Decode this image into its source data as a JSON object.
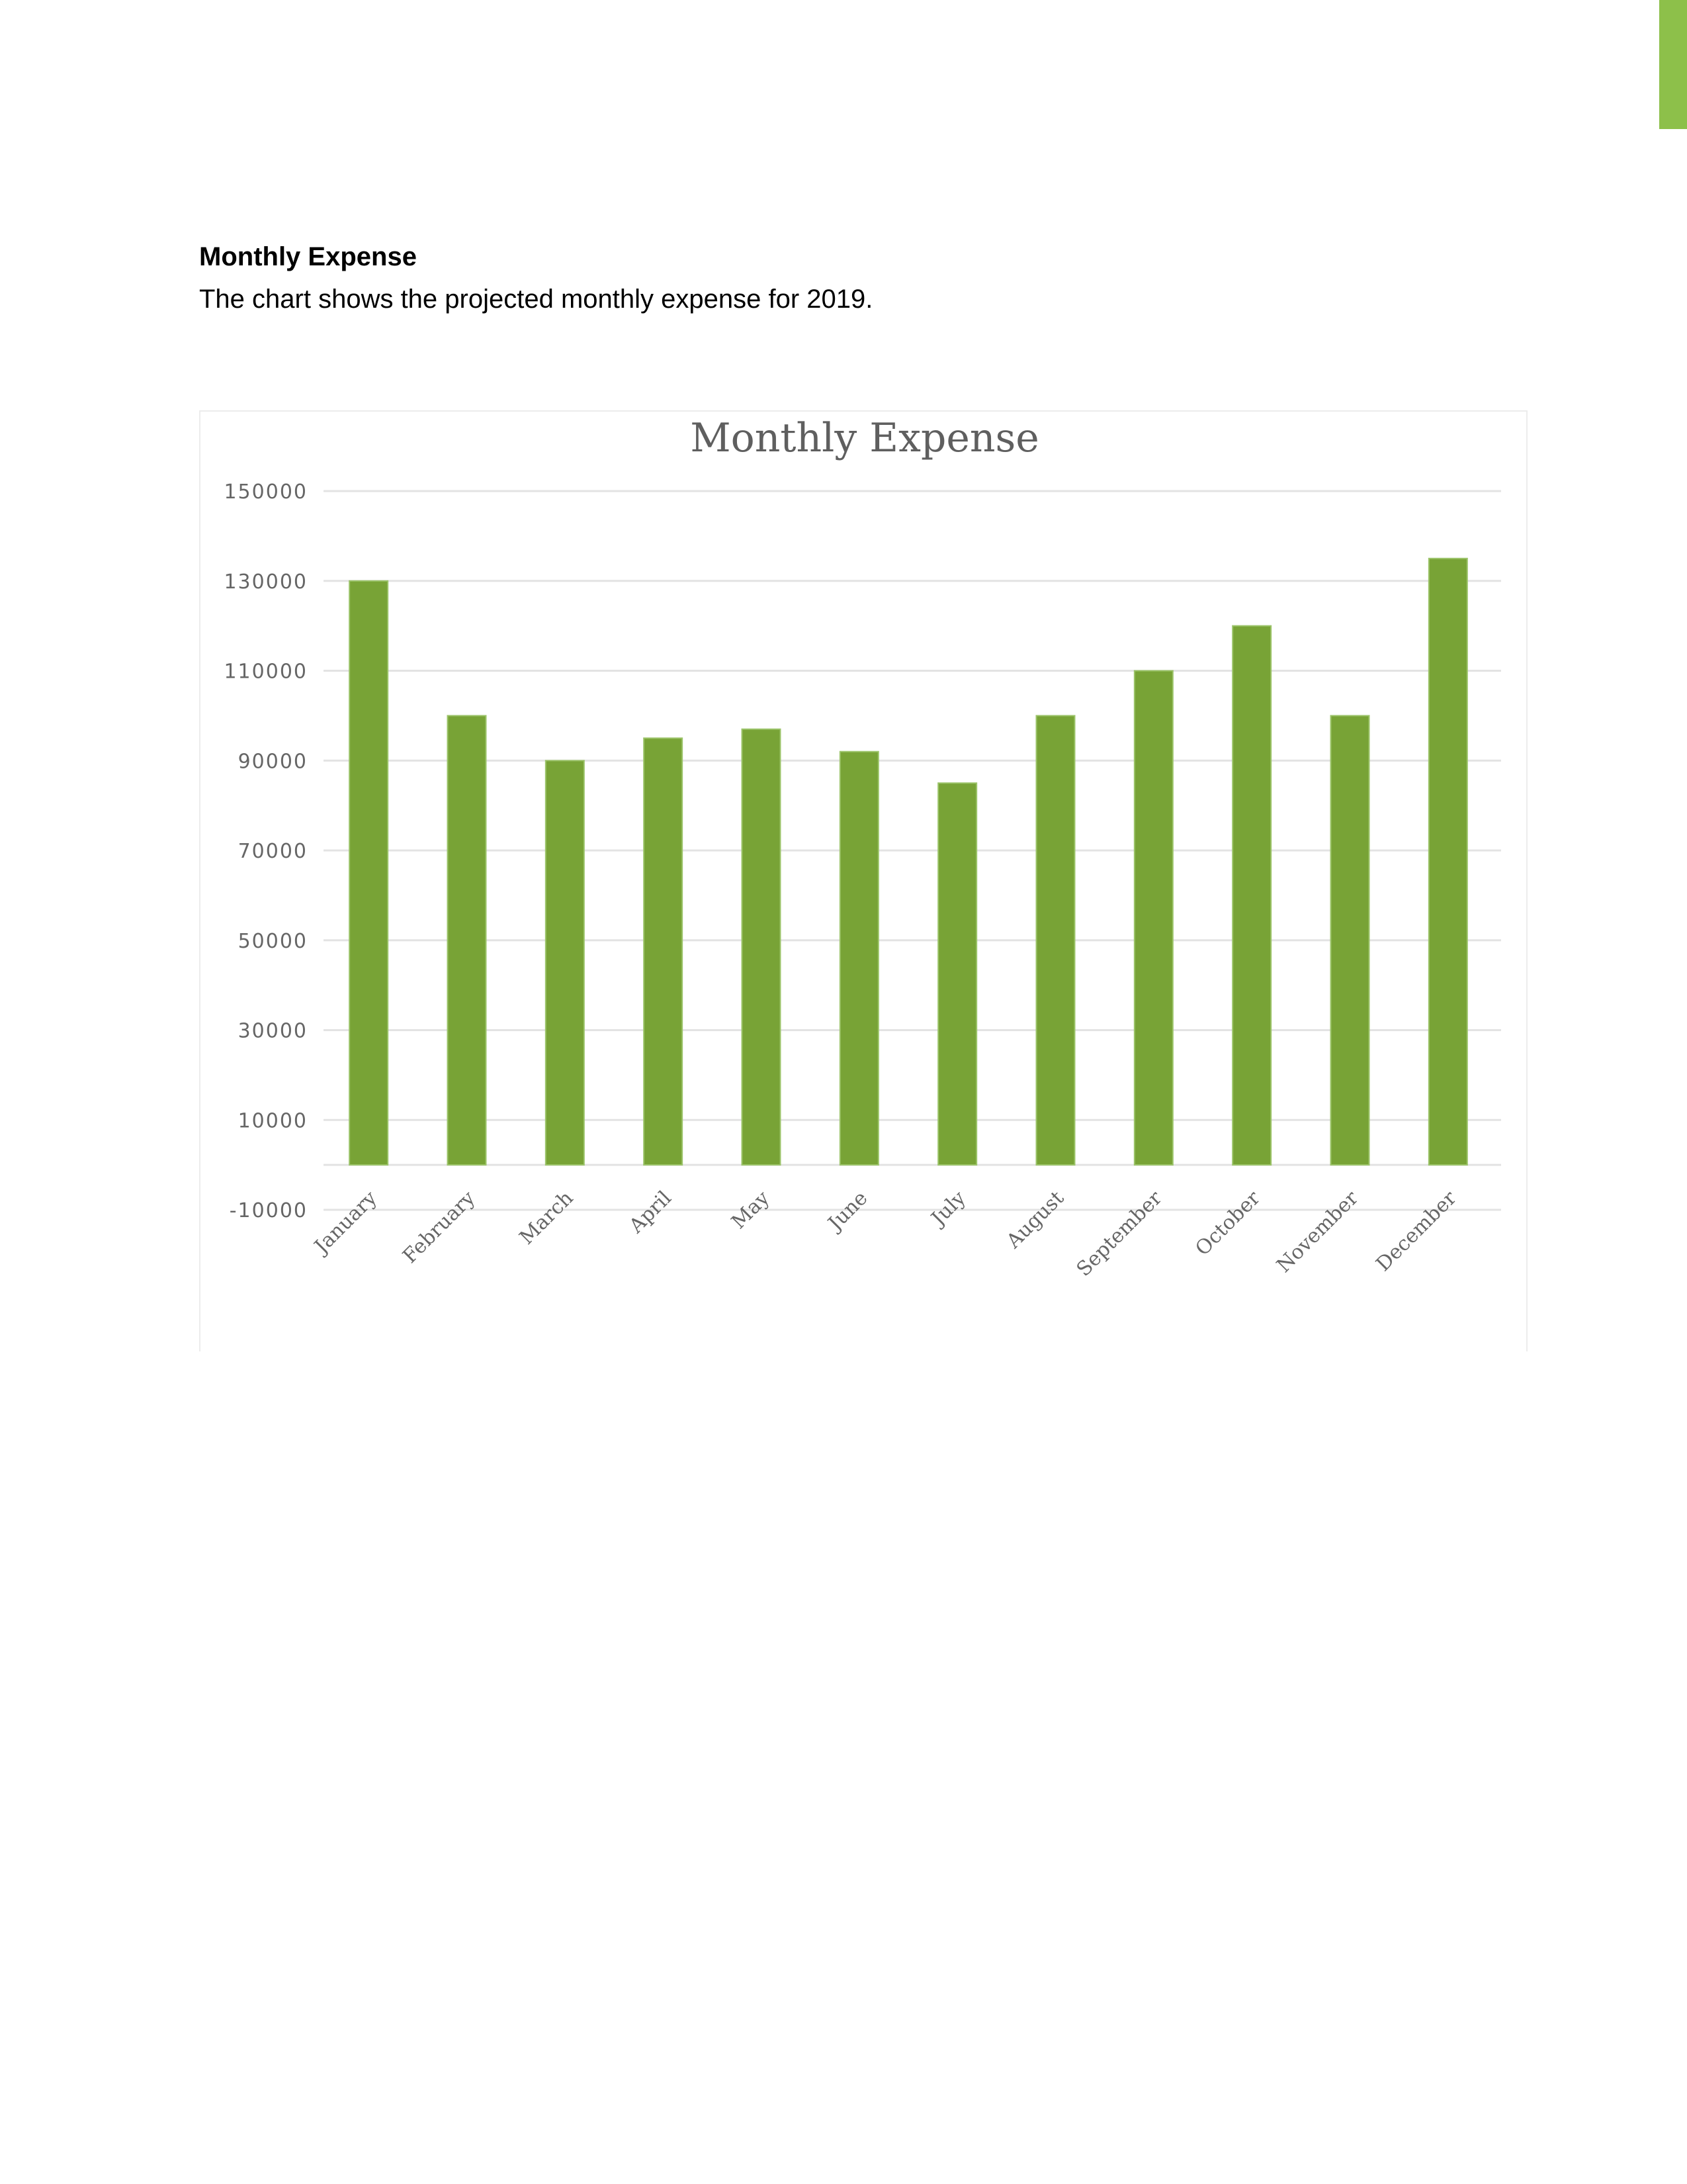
{
  "document": {
    "heading": "Monthly Expense",
    "body": "The chart shows the projected monthly expense for 2019."
  },
  "colors": {
    "accent": "#8dc04a",
    "bar": "#78a336",
    "gridline": "#e3e3e3",
    "axis_text": "#666666",
    "title_text": "#5f5f5f"
  },
  "chart_data": {
    "type": "bar",
    "title": "Monthly Expense",
    "xlabel": "",
    "ylabel": "",
    "categories": [
      "January",
      "February",
      "March",
      "April",
      "May",
      "June",
      "July",
      "August",
      "September",
      "October",
      "November",
      "December"
    ],
    "values": [
      130000,
      100000,
      90000,
      95000,
      97000,
      92000,
      85000,
      100000,
      110000,
      120000,
      100000,
      135000
    ],
    "ylim": [
      -10000,
      150000
    ],
    "yticks": [
      150000,
      130000,
      110000,
      90000,
      70000,
      50000,
      30000,
      10000,
      -10000
    ],
    "grid": true,
    "legend": "none"
  }
}
